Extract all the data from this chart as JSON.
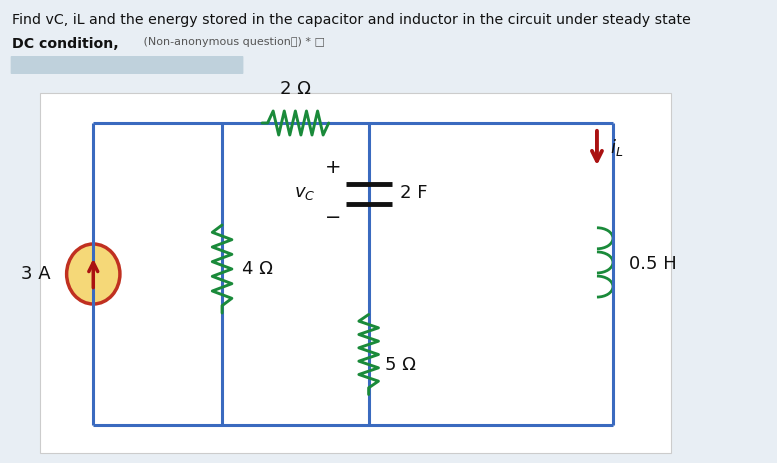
{
  "title_line1": "Find vC, iL and the energy stored in the capacitor and inductor in the circuit under steady state",
  "title_line2": "DC condition,",
  "title_sub": " (Non-anonymous questionⓘ) * □",
  "bg_color": "#e8eef4",
  "circuit_bg": "#ffffff",
  "wire_color": "#3a6abf",
  "resistor_color": "#1a8a3a",
  "inductor_color": "#1a8a3a",
  "source_fill": "#f5d878",
  "source_edge": "#c03020",
  "source_arrow": "#aa1111",
  "text_color": "#111111",
  "il_arrow_color": "#aa1111",
  "R1": "2 Ω",
  "R2": "4 Ω",
  "R3": "5 Ω",
  "C1": "2 F",
  "L1": "0.5 H",
  "I1": "3 A"
}
